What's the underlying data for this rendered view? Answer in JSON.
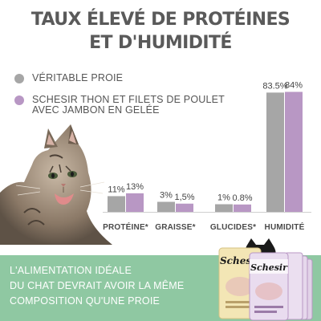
{
  "title": {
    "line1": "TAUX ÉLEVÉ DE PROTÉINES",
    "line2": "ET D'HUMIDITÉ"
  },
  "legend": [
    {
      "lines": [
        "VÉRITABLE PROIE"
      ],
      "color": "#a6a6a6"
    },
    {
      "lines": [
        "SCHESIR THON ET FILETS DE POULET",
        "AVEC JAMBON EN GELÉE"
      ],
      "color": "#b897c4"
    }
  ],
  "footer": {
    "lines": [
      "L'ALIMENTATION IDÉALE",
      "DU CHAT DEVRAIT AVOIR LA MÊME",
      "COMPOSITION QU'UNE PROIE"
    ],
    "background": "#8fc8a2"
  },
  "packs": {
    "brand": "Schesir"
  },
  "colors": {
    "title": "#5a5a5a",
    "grey": "#a6a6a6",
    "purple": "#b897c4"
  },
  "chart_data": {
    "type": "bar",
    "categories": [
      "PROTÉINE*",
      "GRAISSE*",
      "GLUCIDES*",
      "HUMIDITÉ"
    ],
    "series": [
      {
        "name": "VÉRITABLE PROIE",
        "values": [
          11,
          3,
          1,
          83.5
        ],
        "labels": [
          "11%",
          "3%",
          "1%",
          "83.5%"
        ],
        "color": "#a6a6a6"
      },
      {
        "name": "SCHESIR THON ET FILETS DE POULET AVEC JAMBON EN GELÉE",
        "values": [
          13,
          1.5,
          0.8,
          84
        ],
        "labels": [
          "13%",
          "1,5%",
          "0.8%",
          "84%"
        ],
        "color": "#b897c4"
      }
    ],
    "ylim": [
      0,
      100
    ],
    "grid": false,
    "legend_position": "top-left"
  }
}
